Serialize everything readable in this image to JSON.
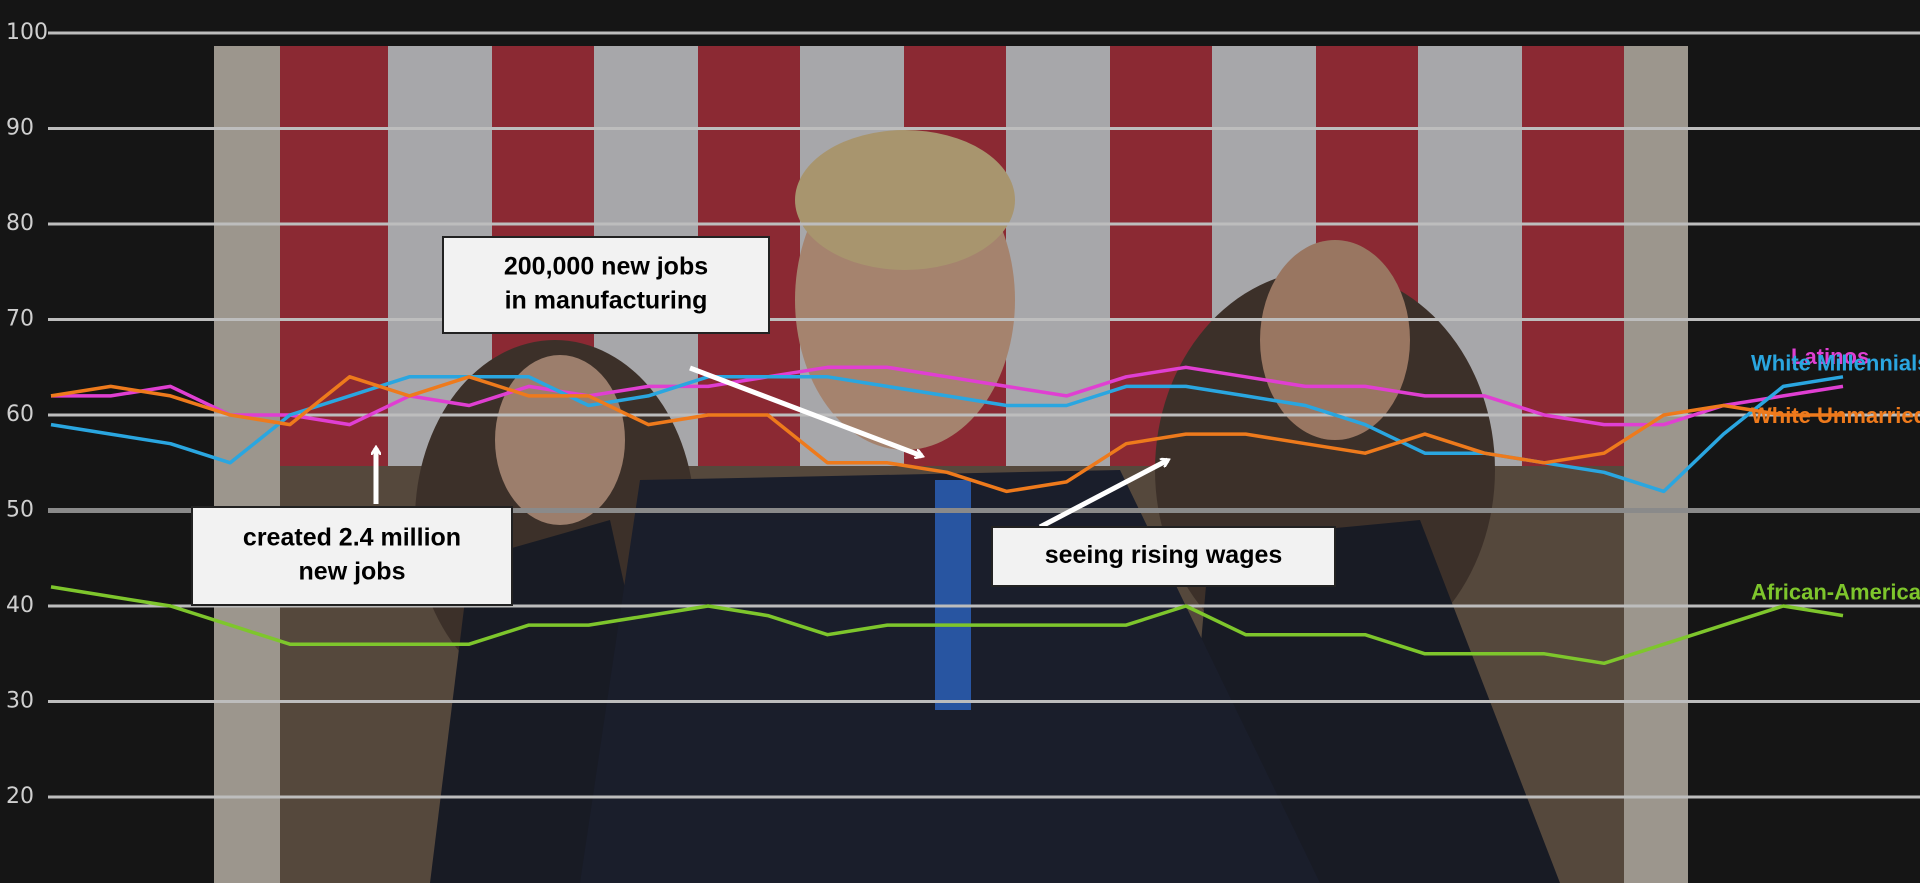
{
  "chart_data": {
    "type": "line",
    "categories": [
      null,
      null,
      null,
      null,
      null,
      null,
      null,
      null,
      null,
      null,
      null,
      null,
      null,
      null,
      null,
      null,
      null,
      null,
      null,
      null,
      null,
      null,
      null,
      null,
      null,
      null,
      null,
      null,
      null,
      null,
      null
    ],
    "series": [
      {
        "name": "Latinos",
        "color": "#e03fd2",
        "values": [
          62,
          62,
          63,
          60,
          60,
          59,
          62,
          61,
          63,
          62,
          63,
          63,
          64,
          65,
          65,
          64,
          63,
          62,
          64,
          65,
          64,
          63,
          63,
          62,
          62,
          60,
          59,
          59,
          61,
          62,
          63
        ]
      },
      {
        "name": "White Millennials",
        "color": "#2aa6e0",
        "values": [
          59,
          58,
          57,
          55,
          60,
          62,
          64,
          64,
          64,
          61,
          62,
          64,
          64,
          64,
          63,
          62,
          61,
          61,
          63,
          63,
          62,
          61,
          59,
          56,
          56,
          55,
          54,
          52,
          58,
          63,
          64
        ]
      },
      {
        "name": "White Unmarried Women",
        "color": "#ee7a1c",
        "values": [
          62,
          63,
          62,
          60,
          59,
          64,
          62,
          64,
          62,
          62,
          59,
          60,
          60,
          55,
          55,
          54,
          52,
          53,
          57,
          58,
          58,
          57,
          56,
          58,
          56,
          55,
          56,
          60,
          61,
          60,
          60
        ]
      },
      {
        "name": "African-Americans",
        "color": "#7ec62c",
        "values": [
          42,
          41,
          40,
          38,
          36,
          36,
          36,
          36,
          38,
          38,
          39,
          40,
          39,
          37,
          38,
          38,
          38,
          38,
          38,
          40,
          37,
          37,
          37,
          35,
          35,
          35,
          34,
          36,
          38,
          40,
          39
        ]
      }
    ],
    "ylim": [
      11,
      100
    ],
    "yticks": [
      20,
      30,
      40,
      50,
      60,
      70,
      80,
      90,
      100
    ],
    "grid": true,
    "annotations": [
      {
        "lines": [
          "200,000 new jobs",
          "in manufacturing"
        ]
      },
      {
        "lines": [
          "created 2.4 million",
          "new jobs"
        ]
      },
      {
        "lines": [
          "seeing rising wages"
        ]
      }
    ]
  }
}
